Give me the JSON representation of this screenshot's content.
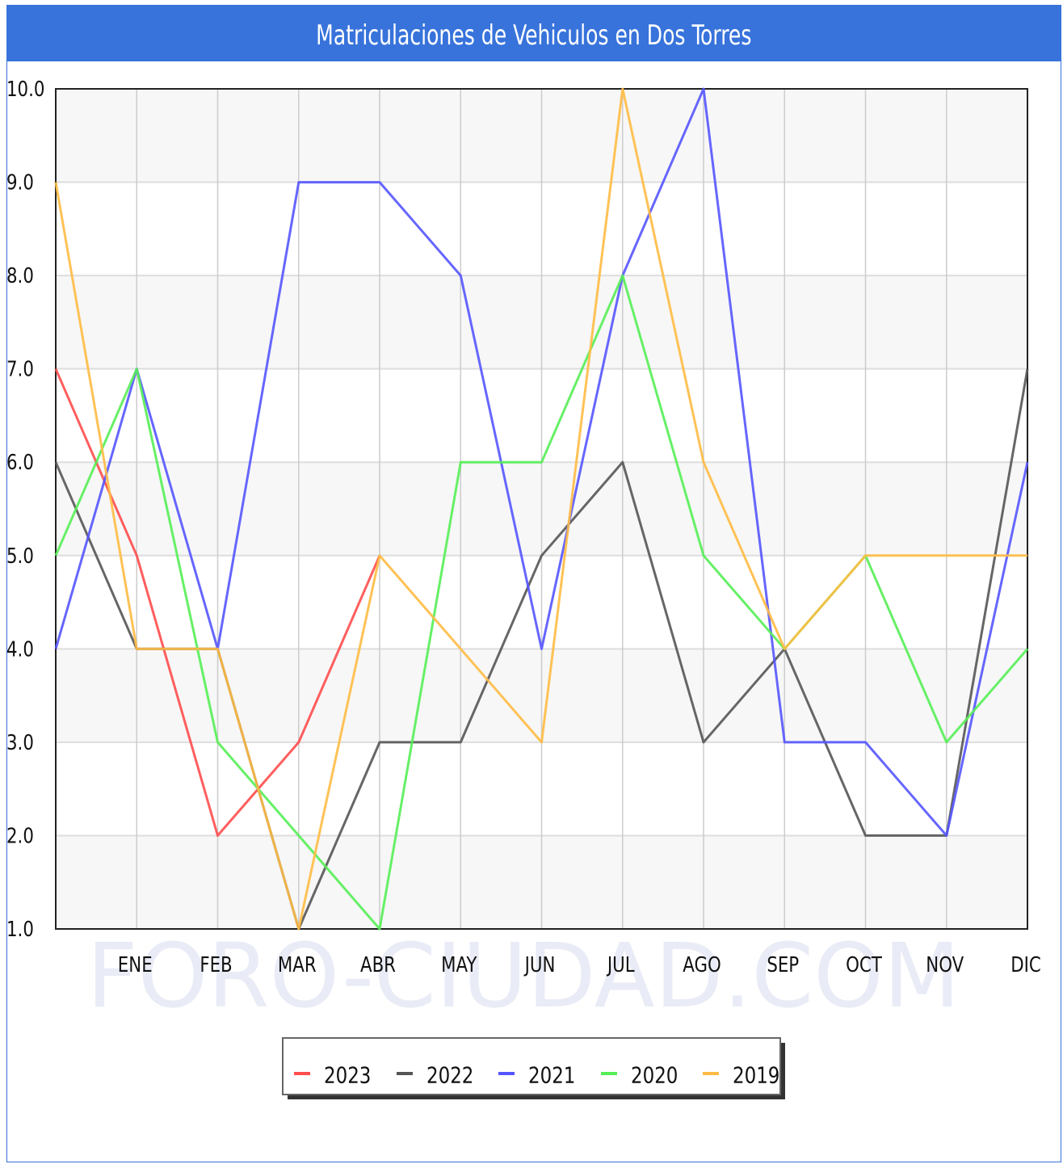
{
  "title": "Matriculaciones de Vehiculos en Dos Torres",
  "watermark": "FORO-CIUDAD.COM",
  "chart_data": {
    "type": "line",
    "title": "Matriculaciones de Vehiculos en Dos Torres",
    "xlabel": "",
    "ylabel": "",
    "categories": [
      "",
      "ENE",
      "FEB",
      "MAR",
      "ABR",
      "MAY",
      "JUN",
      "JUL",
      "AGO",
      "SEP",
      "OCT",
      "NOV",
      "DIC"
    ],
    "ylim": [
      1.0,
      10.0
    ],
    "yticks": [
      "1.0",
      "2.0",
      "3.0",
      "4.0",
      "5.0",
      "6.0",
      "7.0",
      "8.0",
      "9.0",
      "10.0"
    ],
    "grid": true,
    "legend_position": "bottom",
    "series": [
      {
        "name": "2023",
        "color": "#ff4d4d",
        "values": [
          7,
          5,
          2,
          3,
          5,
          null,
          null,
          null,
          null,
          null,
          null,
          null,
          null
        ]
      },
      {
        "name": "2022",
        "color": "#555555",
        "values": [
          6,
          4,
          4,
          1,
          3,
          3,
          5,
          6,
          3,
          4,
          2,
          2,
          7
        ]
      },
      {
        "name": "2021",
        "color": "#5555ff",
        "values": [
          4,
          7,
          4,
          9,
          9,
          8,
          4,
          8,
          10,
          3,
          3,
          2,
          6
        ]
      },
      {
        "name": "2020",
        "color": "#55ee55",
        "values": [
          5,
          7,
          3,
          2,
          1,
          6,
          6,
          8,
          5,
          4,
          5,
          3,
          4
        ]
      },
      {
        "name": "2019",
        "color": "#ffbb44",
        "values": [
          9,
          4,
          4,
          1,
          5,
          4,
          3,
          10,
          6,
          4,
          5,
          5,
          5
        ]
      }
    ]
  }
}
